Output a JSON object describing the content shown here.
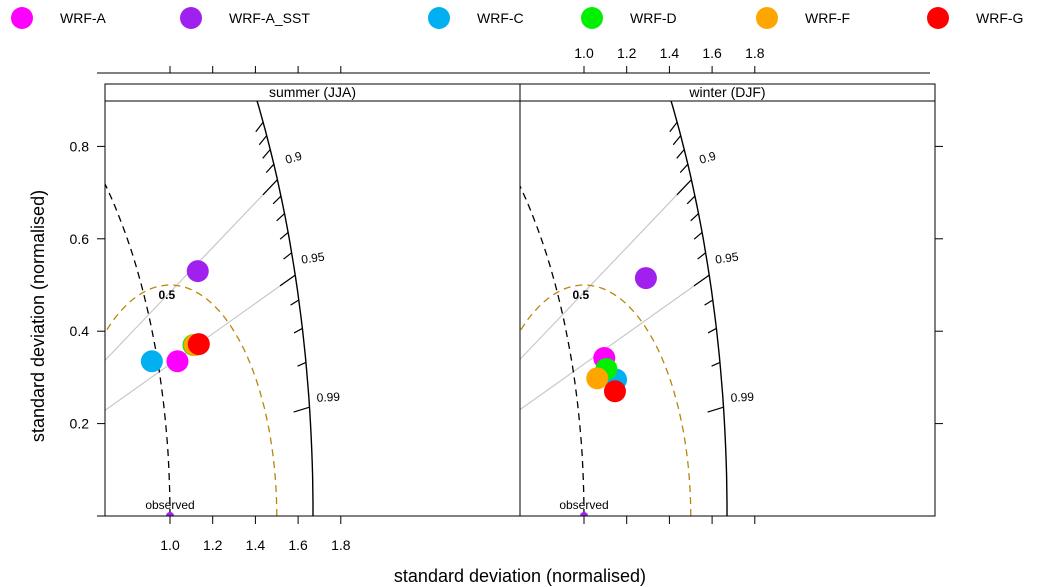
{
  "chart_data": {
    "type": "scatter",
    "subtype": "taylor-diagram",
    "legend": {
      "position": "top",
      "entries": [
        {
          "name": "WRF-A",
          "color": "#FF00FF"
        },
        {
          "name": "WRF-A_SST",
          "color": "#A020F0"
        },
        {
          "name": "WRF-C",
          "color": "#00B0F0"
        },
        {
          "name": "WRF-D",
          "color": "#00F000"
        },
        {
          "name": "WRF-F",
          "color": "#FFA500"
        },
        {
          "name": "WRF-G",
          "color": "#FF0000"
        }
      ]
    },
    "xlabel": "standard deviation (normalised)",
    "ylabel": "standard deviation (normalised)",
    "xlim": [
      0.85,
      1.83
    ],
    "ylim": [
      0,
      0.9
    ],
    "x_ticks": [
      1.0,
      1.2,
      1.4,
      1.6,
      1.8
    ],
    "x_tick_labels": [
      "1.0",
      "1.2",
      "1.4",
      "1.6",
      "1.8"
    ],
    "y_ticks": [
      0.2,
      0.4,
      0.6,
      0.8
    ],
    "y_tick_labels": [
      "0.2",
      "0.4",
      "0.6",
      "0.8"
    ],
    "grid": false,
    "correlation_labels": [
      "0.9",
      "0.95",
      "0.99"
    ],
    "rms_label": "0.5",
    "observed_label": "observed",
    "colors": {
      "correlation_line": "#C8C8C8",
      "rms_circle": "#B8860B",
      "observed": "#A020F0",
      "arc": "#000000"
    },
    "panels": [
      {
        "title": "summer (JJA)",
        "points": [
          {
            "series": "WRF-A",
            "x": 1.035,
            "y": 0.335
          },
          {
            "series": "WRF-A_SST",
            "x": 1.13,
            "y": 0.53
          },
          {
            "series": "WRF-C",
            "x": 0.915,
            "y": 0.335
          },
          {
            "series": "WRF-D",
            "x": 1.11,
            "y": 0.37
          },
          {
            "series": "WRF-F",
            "x": 1.115,
            "y": 0.37
          },
          {
            "series": "WRF-G",
            "x": 1.135,
            "y": 0.372
          }
        ]
      },
      {
        "title": "winter (DJF)",
        "points": [
          {
            "series": "WRF-A",
            "x": 1.095,
            "y": 0.342
          },
          {
            "series": "WRF-A_SST",
            "x": 1.29,
            "y": 0.515
          },
          {
            "series": "WRF-C",
            "x": 1.15,
            "y": 0.295
          },
          {
            "series": "WRF-D",
            "x": 1.105,
            "y": 0.318
          },
          {
            "series": "WRF-F",
            "x": 1.062,
            "y": 0.298
          },
          {
            "series": "WRF-G",
            "x": 1.145,
            "y": 0.27
          }
        ]
      }
    ]
  }
}
